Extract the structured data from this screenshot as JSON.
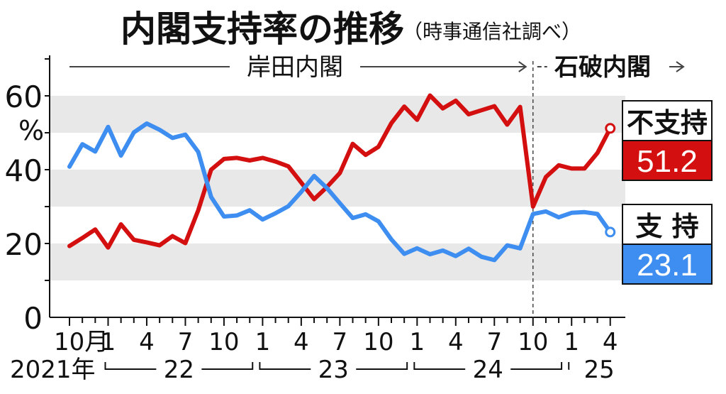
{
  "title": "内閣支持率の推移",
  "source": "（時事通信社調べ）",
  "eras": [
    {
      "label": "岸田内閣",
      "from_index": 0,
      "to_index": 36
    },
    {
      "label": "石破内閣",
      "from_index": 36,
      "to_index": 42
    }
  ],
  "legend": [
    {
      "label": "不支持",
      "value": "51.2",
      "color": "#d40f0f"
    },
    {
      "label": "支 持",
      "value": "23.1",
      "color": "#3d8ef0"
    }
  ],
  "chart_data": {
    "type": "line",
    "unit_label": "%",
    "ylim": [
      0,
      70
    ],
    "yticks": [
      0,
      20,
      40,
      60
    ],
    "grid_bands": [
      [
        10,
        20
      ],
      [
        30,
        40
      ],
      [
        50,
        60
      ]
    ],
    "x_tick_labels": [
      {
        "index": 0,
        "label": "10月"
      },
      {
        "index": 3,
        "label": "1"
      },
      {
        "index": 6,
        "label": "4"
      },
      {
        "index": 9,
        "label": "7"
      },
      {
        "index": 12,
        "label": "10"
      },
      {
        "index": 15,
        "label": "1"
      },
      {
        "index": 18,
        "label": "4"
      },
      {
        "index": 21,
        "label": "7"
      },
      {
        "index": 24,
        "label": "10"
      },
      {
        "index": 27,
        "label": "1"
      },
      {
        "index": 30,
        "label": "4"
      },
      {
        "index": 33,
        "label": "7"
      },
      {
        "index": 36,
        "label": "10"
      },
      {
        "index": 39,
        "label": "1"
      },
      {
        "index": 42,
        "label": "4"
      }
    ],
    "year_labels": [
      {
        "label": "2021年",
        "from_index": 0,
        "to_index": 2
      },
      {
        "label": "22",
        "from_index": 3,
        "to_index": 14
      },
      {
        "label": "23",
        "from_index": 15,
        "to_index": 26
      },
      {
        "label": "24",
        "from_index": 27,
        "to_index": 38
      },
      {
        "label": "25",
        "from_index": 39,
        "to_index": 42
      }
    ],
    "series": [
      {
        "name": "不支持",
        "color": "#d40f0f",
        "values": [
          19.3,
          21.5,
          23.8,
          18.9,
          25.2,
          21.0,
          20.3,
          19.5,
          22.0,
          20.1,
          29.0,
          40.0,
          42.9,
          43.2,
          42.5,
          43.2,
          42.2,
          40.9,
          36.5,
          32.0,
          35.3,
          39.1,
          47.0,
          44.0,
          46.2,
          52.6,
          57.1,
          53.5,
          60.1,
          56.6,
          58.7,
          55.0,
          56.1,
          57.2,
          52.2,
          57.0,
          30.0,
          38.0,
          41.2,
          40.3,
          40.3,
          44.5,
          51.2
        ]
      },
      {
        "name": "支 持",
        "color": "#3d8ef0",
        "values": [
          40.8,
          46.9,
          44.9,
          51.6,
          43.8,
          50.1,
          52.5,
          50.8,
          48.6,
          49.5,
          44.8,
          32.6,
          27.3,
          27.6,
          29.0,
          26.5,
          28.2,
          30.1,
          34.0,
          38.3,
          35.0,
          30.9,
          26.9,
          27.9,
          26.0,
          21.1,
          17.2,
          18.7,
          17.1,
          18.1,
          16.6,
          18.6,
          16.4,
          15.5,
          19.5,
          18.7,
          28.0,
          28.7,
          27.1,
          28.3,
          28.5,
          28.0,
          23.1
        ]
      }
    ]
  }
}
